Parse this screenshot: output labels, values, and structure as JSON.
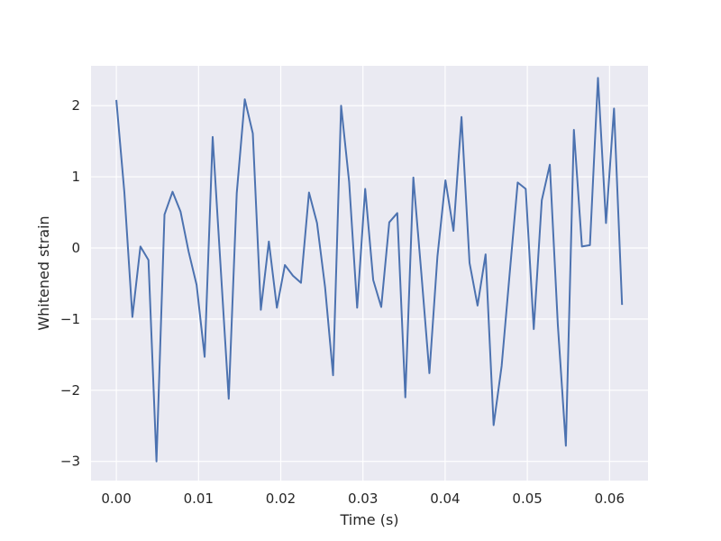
{
  "chart_data": {
    "type": "line",
    "title": "",
    "xlabel": "Time (s)",
    "ylabel": "Whitened strain",
    "xlim": [
      -0.00308,
      0.06468
    ],
    "ylim": [
      -3.27,
      2.56
    ],
    "xticks": [
      0.0,
      0.01,
      0.02,
      0.03,
      0.04,
      0.05,
      0.06
    ],
    "xtick_labels": [
      "0.00",
      "0.01",
      "0.02",
      "0.03",
      "0.04",
      "0.05",
      "0.06"
    ],
    "yticks": [
      -3,
      -2,
      -1,
      0,
      1,
      2
    ],
    "ytick_labels": [
      "−3",
      "−2",
      "−1",
      "0",
      "1",
      "2"
    ],
    "grid": true,
    "colors": {
      "background": "#eaeaf2",
      "grid": "#ffffff",
      "line": "#4c72b0"
    },
    "series": [
      {
        "x": [
          0.0,
          0.000977,
          0.001953,
          0.00293,
          0.003906,
          0.004883,
          0.005859,
          0.006836,
          0.007813,
          0.008789,
          0.009766,
          0.010742,
          0.011719,
          0.012695,
          0.013672,
          0.014648,
          0.015625,
          0.016602,
          0.017578,
          0.018555,
          0.019531,
          0.020508,
          0.021484,
          0.022461,
          0.023438,
          0.024414,
          0.025391,
          0.026367,
          0.027344,
          0.02832,
          0.029297,
          0.030273,
          0.03125,
          0.032227,
          0.033203,
          0.03418,
          0.035156,
          0.036133,
          0.037109,
          0.038086,
          0.039063,
          0.040039,
          0.041016,
          0.041992,
          0.042969,
          0.043945,
          0.044922,
          0.045898,
          0.046875,
          0.047852,
          0.048828,
          0.049805,
          0.050781,
          0.051758,
          0.052734,
          0.053711,
          0.054688,
          0.055664,
          0.056641,
          0.057617,
          0.058594,
          0.05957,
          0.060547,
          0.061523
        ],
        "y": [
          2.08,
          0.78,
          -0.97,
          0.02,
          -0.17,
          -3.0,
          0.47,
          0.79,
          0.51,
          -0.05,
          -0.52,
          -1.53,
          1.56,
          -0.28,
          -2.12,
          0.77,
          2.09,
          1.61,
          -0.87,
          0.09,
          -0.84,
          -0.24,
          -0.39,
          -0.49,
          0.78,
          0.35,
          -0.55,
          -1.79,
          2.0,
          0.93,
          -0.84,
          0.83,
          -0.45,
          -0.83,
          0.36,
          0.49,
          -2.1,
          0.99,
          -0.36,
          -1.76,
          -0.12,
          0.95,
          0.24,
          1.84,
          -0.21,
          -0.81,
          -0.09,
          -2.49,
          -1.66,
          -0.36,
          0.92,
          0.83,
          -1.14,
          0.67,
          1.17,
          -1.08,
          -2.78,
          1.66,
          0.02,
          0.04,
          2.39,
          0.35,
          1.96,
          -0.8
        ]
      }
    ]
  }
}
